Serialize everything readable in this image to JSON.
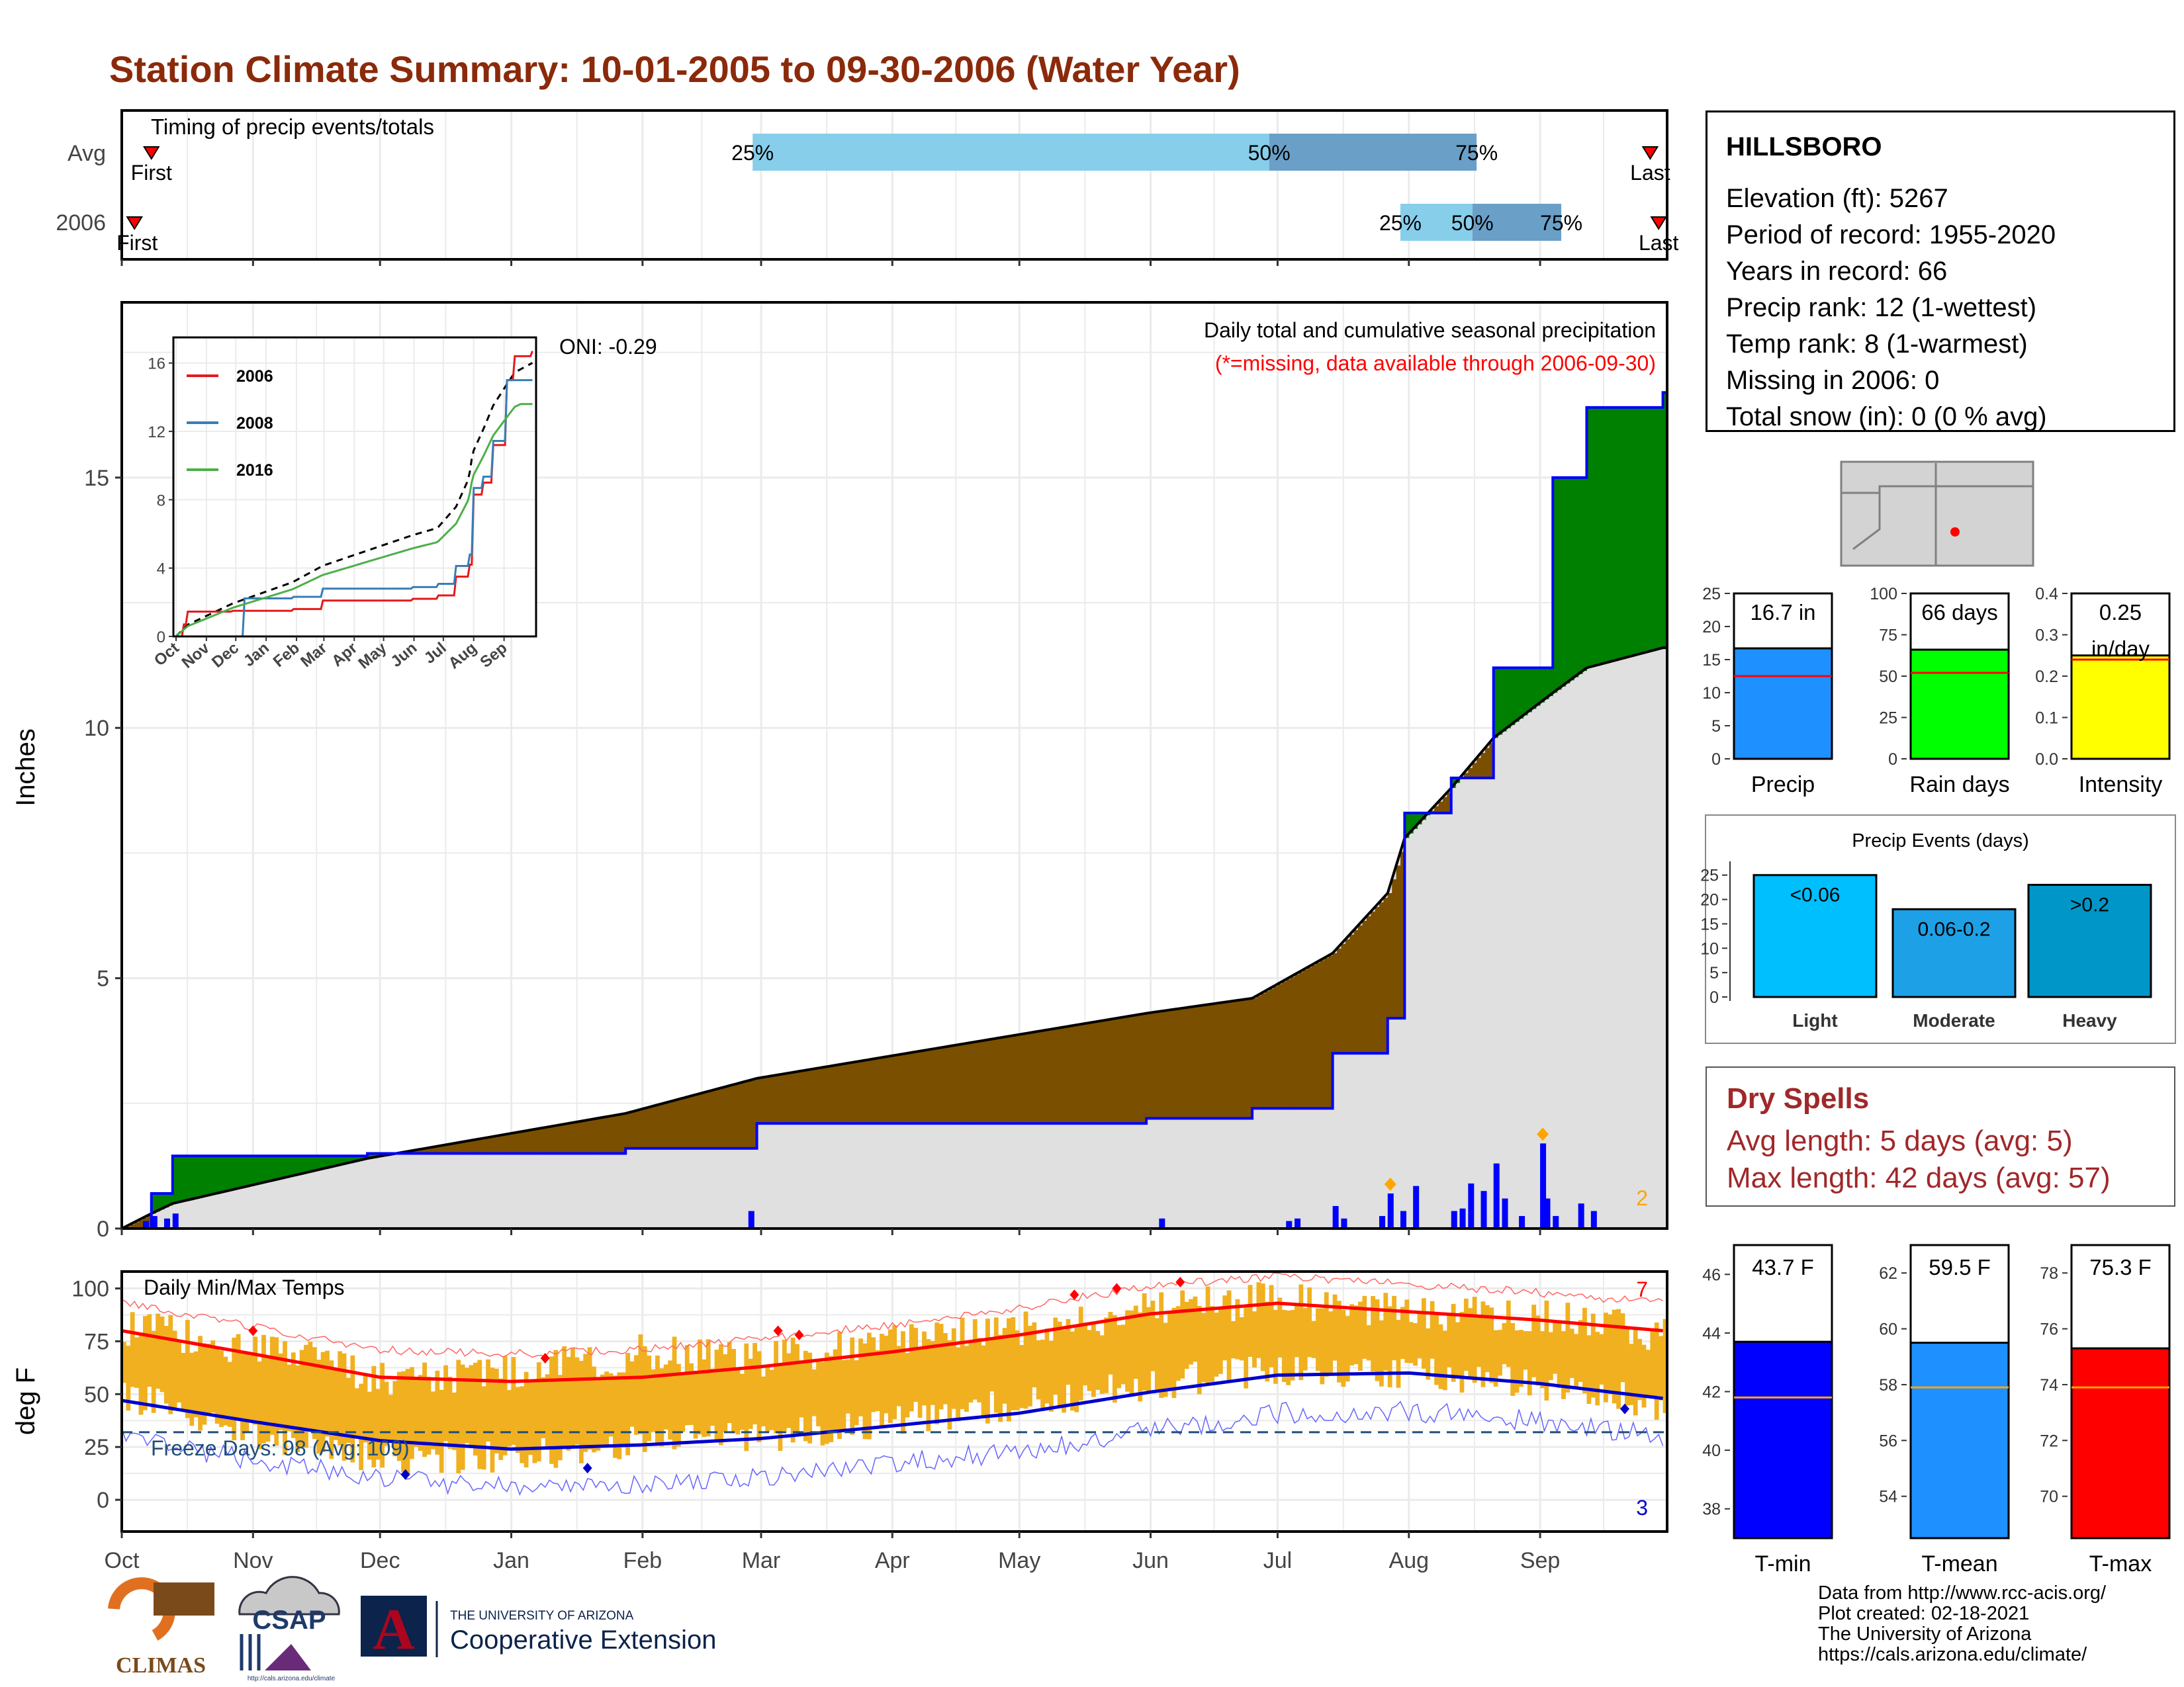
{
  "page_title": "Station Climate Summary: 10-01-2005 to 09-30-2006 (Water Year)",
  "colors": {
    "title": "#8b2a0a",
    "precip_current": "#0000ff",
    "above_normal": "#008000",
    "below_normal": "#7b4f00",
    "normal_fill": "#e0e0e0",
    "temp_bars": "#f0b020",
    "tmax_avg": "#ff0000",
    "tmin_avg": "#0000cc",
    "freeze_line": "#1f4e79",
    "light_blue": "#87ceeb",
    "steel_blue": "#6aa0c8",
    "dry_spell_text": "#a0282a"
  },
  "timing_panel": {
    "title": "Timing of precip events/totals",
    "rows": [
      {
        "label": "Avg",
        "first_label": "First",
        "last_label": "Last",
        "pct25": "25%",
        "pct50": "50%",
        "pct75": "75%"
      },
      {
        "label": "2006",
        "first_label": "First",
        "last_label": "Last",
        "pct25": "25%",
        "pct50": "50%",
        "pct75": "75%"
      }
    ]
  },
  "precip_panel": {
    "ylabel": "Inches",
    "y_ticks": [
      "0",
      "5",
      "10",
      "15"
    ],
    "oni": "ONI: -0.29",
    "caption": "Daily total and cumulative seasonal precipitation",
    "missing_note": "(*=missing, data available through 2006-09-30)",
    "record_count": "2"
  },
  "inset": {
    "y_ticks": [
      "0",
      "4",
      "8",
      "12",
      "16"
    ],
    "x_ticks": [
      "Oct",
      "Nov",
      "Dec",
      "Jan",
      "Feb",
      "Mar",
      "Apr",
      "May",
      "Jun",
      "Jul",
      "Aug",
      "Sep"
    ],
    "legend": [
      {
        "name": "2006",
        "color": "#e41a1c"
      },
      {
        "name": "2008",
        "color": "#377eb8"
      },
      {
        "name": "2016",
        "color": "#4daf4a"
      }
    ]
  },
  "temp_panel": {
    "title": "Daily Min/Max Temps",
    "ylabel": "deg F",
    "y_ticks": [
      "0",
      "25",
      "50",
      "75",
      "100"
    ],
    "freeze_text": "Freeze Days: 98 (Avg: 109)",
    "record_high_count": "7",
    "record_low_count": "3"
  },
  "x_months": [
    "Oct",
    "Nov",
    "Dec",
    "Jan",
    "Feb",
    "Mar",
    "Apr",
    "May",
    "Jun",
    "Jul",
    "Aug",
    "Sep"
  ],
  "station_info": {
    "name": "HILLSBORO",
    "lines": [
      "Elevation (ft): 5267",
      "Period of record: 1955-2020",
      "Years in record: 66",
      "Precip rank: 12 (1-wettest)",
      "Temp rank: 8 (1-warmest)",
      "Missing in 2006: 0",
      "Total snow (in): 0 (0 % avg)"
    ]
  },
  "summary_bars": [
    {
      "label": "Precip",
      "value_text": "16.7 in",
      "value": 16.7,
      "avg": 12.5,
      "max": 25,
      "ticks": [
        "0",
        "5",
        "10",
        "15",
        "20",
        "25"
      ],
      "color": "#1e90ff"
    },
    {
      "label": "Rain days",
      "value_text": "66 days",
      "value": 66,
      "avg": 52,
      "max": 100,
      "ticks": [
        "0",
        "25",
        "50",
        "75",
        "100"
      ],
      "color": "#00ff00"
    },
    {
      "label": "Intensity",
      "value_text": "0.25",
      "value_text2": "in/day",
      "value": 0.25,
      "avg": 0.24,
      "max": 0.4,
      "ticks": [
        "0.0",
        "0.1",
        "0.2",
        "0.3",
        "0.4"
      ],
      "color": "#ffff00"
    }
  ],
  "precip_events": {
    "title": "Precip Events (days)",
    "ticks": [
      "0",
      "5",
      "10",
      "15",
      "20",
      "25"
    ],
    "bars": [
      {
        "label": "Light",
        "bar_text": "<0.06",
        "value": 25,
        "color": "#00bfff"
      },
      {
        "label": "Moderate",
        "bar_text": "0.06-0.2",
        "value": 18,
        "color": "#1ea0e6"
      },
      {
        "label": "Heavy",
        "bar_text": ">0.2",
        "value": 23,
        "color": "#0096c8"
      }
    ]
  },
  "dry_spells": {
    "title": "Dry Spells",
    "avg_length": "Avg length: 5 days (avg: 5)",
    "max_length": "Max length: 42 days (avg: 57)"
  },
  "temp_bars": [
    {
      "label": "T-min",
      "value_text": "43.7 F",
      "value": 43.7,
      "avg": 41.8,
      "min": 37,
      "max": 47,
      "ticks": [
        "38",
        "40",
        "42",
        "44",
        "46"
      ],
      "color": "#0000ff"
    },
    {
      "label": "T-mean",
      "value_text": "59.5 F",
      "value": 59.5,
      "avg": 57.9,
      "min": 52.5,
      "max": 63,
      "ticks": [
        "54",
        "56",
        "58",
        "60",
        "62"
      ],
      "color": "#1e90ff"
    },
    {
      "label": "T-max",
      "value_text": "75.3 F",
      "value": 75.3,
      "avg": 73.9,
      "min": 68.5,
      "max": 79,
      "ticks": [
        "70",
        "72",
        "74",
        "76",
        "78"
      ],
      "color": "#ff0000"
    }
  ],
  "logos": {
    "climas": "CLIMAS",
    "csap": "CSAP",
    "csap_url": "http://cals.arizona.edu/climate",
    "ua_letter": "A",
    "ua_top": "THE UNIVERSITY OF ARIZONA",
    "ua_bottom": "Cooperative Extension"
  },
  "credits": [
    "Data from http://www.rcc-acis.org/",
    "Plot created: 02-18-2021",
    "The University of Arizona",
    "https://cals.arizona.edu/climate/"
  ],
  "chart_data": [
    {
      "type": "bar",
      "title": "Timing of precip events/totals",
      "categories": [
        "Avg",
        "2006"
      ],
      "series": [
        {
          "name": "Avg",
          "values": [
            {
              "first": "Oct 08",
              "p25": "Feb 27",
              "p50": "Jun 29",
              "p75": "Aug 17",
              "last": "Sep 27"
            }
          ]
        },
        {
          "name": "2006",
          "values": [
            {
              "first": "Oct 04",
              "p25": "Jul 30",
              "p50": "Aug 16",
              "p75": "Sep 06",
              "last": "Sep 29"
            }
          ]
        }
      ]
    },
    {
      "type": "area",
      "title": "Daily total and cumulative seasonal precipitation",
      "ylabel": "Inches",
      "ylim": [
        0,
        18.5
      ],
      "x": [
        "2005-10-01",
        "2005-10-08",
        "2005-10-13",
        "2005-11-28",
        "2006-01-28",
        "2006-02-28",
        "2006-05-31",
        "2006-06-25",
        "2006-07-14",
        "2006-07-27",
        "2006-07-31",
        "2006-08-11",
        "2006-08-21",
        "2006-09-04",
        "2006-09-12",
        "2006-09-30"
      ],
      "series": [
        {
          "name": "2006",
          "values": [
            0,
            0.7,
            1.45,
            1.5,
            1.6,
            2.1,
            2.2,
            2.4,
            3.5,
            4.2,
            8.3,
            9.0,
            11.2,
            15.0,
            16.4,
            16.7
          ]
        },
        {
          "name": "Avg",
          "values": [
            0,
            0.3,
            0.5,
            1.4,
            2.3,
            3.0,
            4.3,
            4.6,
            5.5,
            6.7,
            7.8,
            8.8,
            9.8,
            10.7,
            11.2,
            11.6
          ]
        }
      ]
    },
    {
      "type": "bar",
      "title": "Daily precipitation",
      "ylabel": "Inches",
      "x": [
        "2005-10-06",
        "2005-10-08",
        "2005-10-11",
        "2005-10-13",
        "2006-02-26",
        "2006-06-03",
        "2006-07-03",
        "2006-07-05",
        "2006-07-14",
        "2006-07-16",
        "2006-07-25",
        "2006-07-27",
        "2006-07-30",
        "2006-08-02",
        "2006-08-11",
        "2006-08-13",
        "2006-08-15",
        "2006-08-18",
        "2006-08-21",
        "2006-08-23",
        "2006-08-27",
        "2006-09-01",
        "2006-09-02",
        "2006-09-04",
        "2006-09-10",
        "2006-09-13"
      ],
      "values": [
        0.15,
        0.25,
        0.2,
        0.3,
        0.35,
        0.2,
        0.15,
        0.2,
        0.45,
        0.2,
        0.25,
        0.7,
        0.35,
        0.85,
        0.35,
        0.4,
        0.9,
        0.75,
        1.3,
        0.6,
        0.25,
        1.7,
        0.6,
        0.25,
        0.5,
        0.35
      ]
    },
    {
      "type": "line",
      "title": "Daily Min/Max Temps",
      "ylabel": "deg F",
      "ylim": [
        -15,
        108
      ],
      "x": [
        "Oct 01",
        "Nov 01",
        "Dec 01",
        "Jan 01",
        "Feb 01",
        "Mar 01",
        "Apr 01",
        "May 01",
        "Jun 01",
        "Jul 01",
        "Aug 01",
        "Sep 01",
        "Sep 30"
      ],
      "series": [
        {
          "name": "Avg max",
          "values": [
            80,
            69,
            58,
            56,
            58,
            63,
            70,
            78,
            88,
            93,
            89,
            85,
            80
          ]
        },
        {
          "name": "Avg min",
          "values": [
            47,
            37,
            28,
            24,
            26,
            29,
            35,
            41,
            51,
            59,
            60,
            55,
            48
          ]
        },
        {
          "name": "Daily max",
          "values": [
            82,
            72,
            58,
            60,
            70,
            66,
            75,
            80,
            90,
            95,
            88,
            88,
            78
          ]
        },
        {
          "name": "Daily min",
          "values": [
            50,
            32,
            20,
            20,
            28,
            30,
            38,
            45,
            55,
            62,
            60,
            55,
            45
          ]
        }
      ]
    },
    {
      "type": "bar",
      "title": "Precip Events (days)",
      "categories": [
        "Light",
        "Moderate",
        "Heavy"
      ],
      "values": [
        25,
        18,
        23
      ]
    }
  ]
}
